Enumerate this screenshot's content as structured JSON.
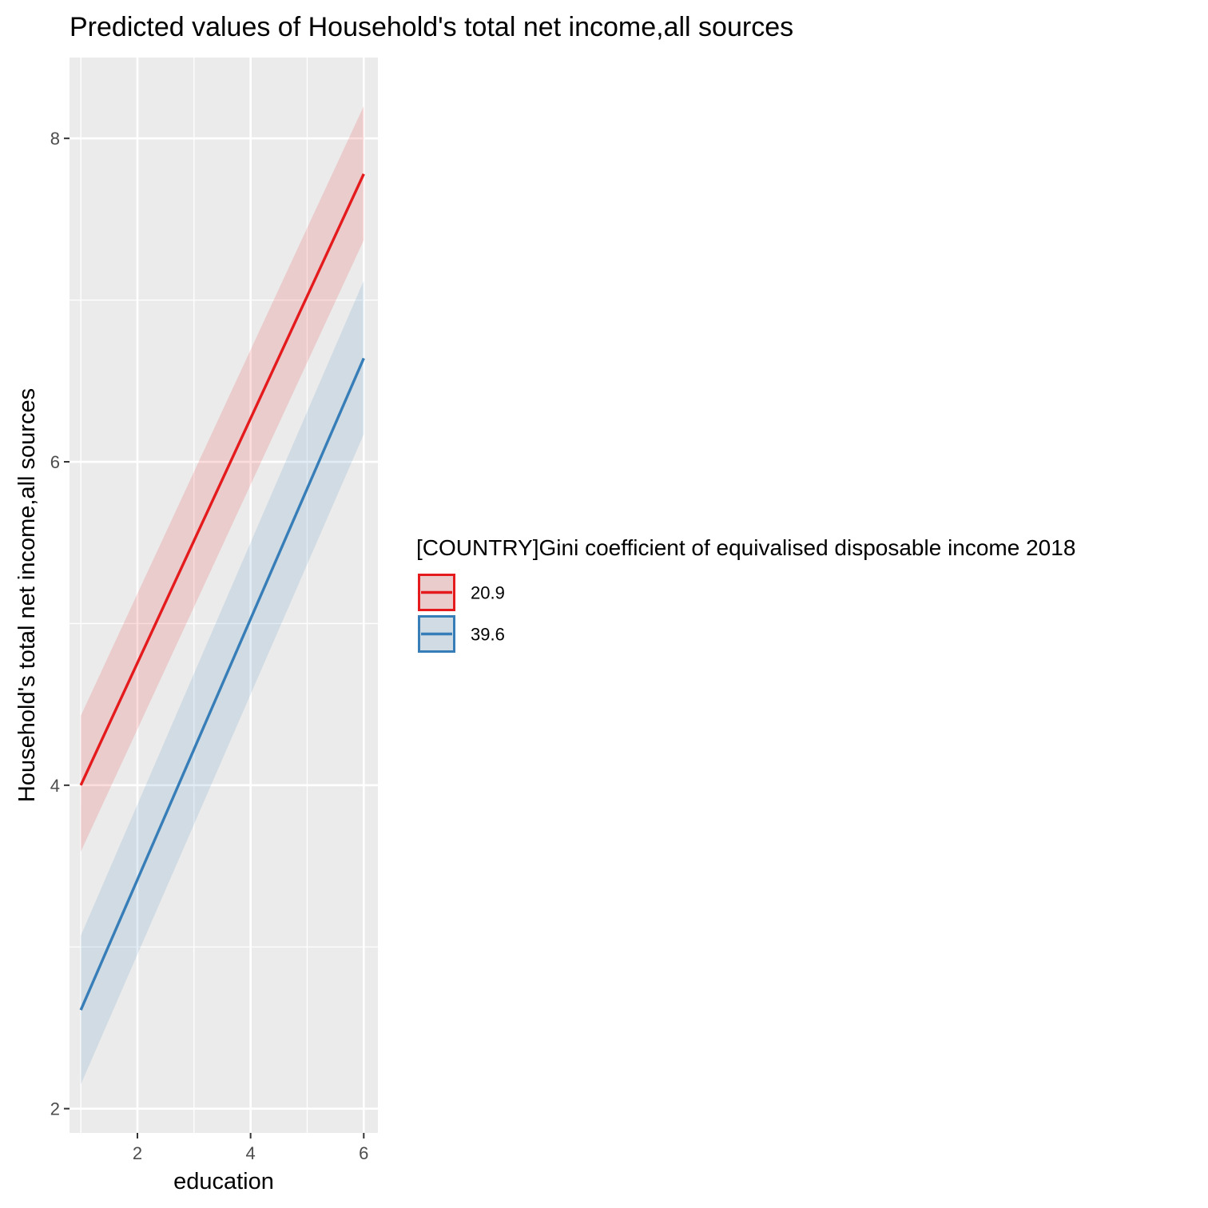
{
  "chart_data": {
    "type": "line",
    "title": "Predicted values of Household's total net income,all sources",
    "xlabel": "education",
    "ylabel": "Household's total net income,all sources",
    "xlim": [
      0.8,
      6.25
    ],
    "ylim": [
      1.85,
      8.5
    ],
    "x_ticks": [
      2,
      4,
      6
    ],
    "y_ticks": [
      2,
      4,
      6,
      8
    ],
    "x_ticks_minor": [
      1,
      3,
      5
    ],
    "y_ticks_minor": [
      3,
      5,
      7
    ],
    "grid": true,
    "legend": {
      "title": "[COUNTRY]Gini coefficient of equivalised disposable income 2018",
      "position": "right"
    },
    "x": [
      1,
      6
    ],
    "series": [
      {
        "name": "20.9",
        "color": "#e41a1c",
        "values": [
          4.0,
          7.78
        ],
        "ci_low": [
          3.59,
          7.37
        ],
        "ci_high": [
          4.43,
          8.2
        ]
      },
      {
        "name": "39.6",
        "color": "#377eb8",
        "values": [
          2.61,
          6.64
        ],
        "ci_low": [
          2.15,
          6.17
        ],
        "ci_high": [
          3.07,
          7.12
        ]
      }
    ]
  }
}
